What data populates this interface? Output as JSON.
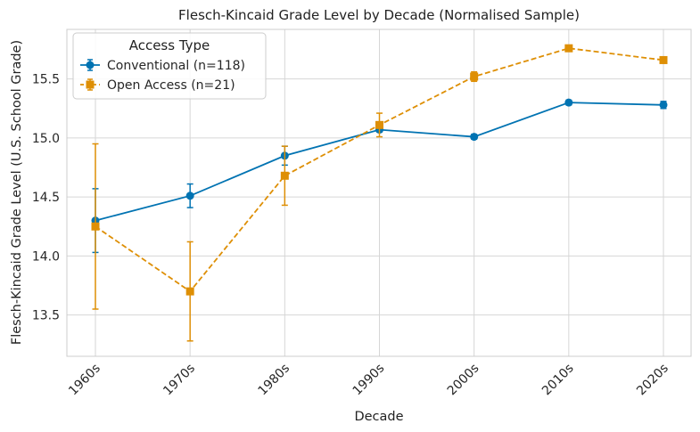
{
  "chart_data": {
    "type": "line",
    "title": "Flesch-Kincaid Grade Level by Decade (Normalised Sample)",
    "xlabel": "Decade",
    "ylabel": "Flesch-Kincaid Grade Level (U.S. School Grade)",
    "categories": [
      "1960s",
      "1970s",
      "1980s",
      "1990s",
      "2000s",
      "2010s",
      "2020s"
    ],
    "ylim": [
      13.15,
      15.92
    ],
    "yticks": [
      "13.5",
      "14.0",
      "14.5",
      "15.0",
      "15.5"
    ],
    "grid": true,
    "legend": {
      "title": "Access Type",
      "placement": "top-left"
    },
    "series": [
      {
        "name": "Conventional (n=118)",
        "color": "#0173b2",
        "marker": "circle",
        "linestyle": "solid",
        "values": [
          14.3,
          14.51,
          14.85,
          15.07,
          15.01,
          15.3,
          15.28
        ],
        "error": [
          0.27,
          0.1,
          0.08,
          0.02,
          0.02,
          0.02,
          0.03
        ]
      },
      {
        "name": "Open Access (n=21)",
        "color": "#de8f05",
        "marker": "square",
        "linestyle": "dashed",
        "values": [
          14.25,
          13.7,
          14.68,
          15.11,
          15.52,
          15.76,
          15.66
        ],
        "error": [
          0.7,
          0.42,
          0.25,
          0.1,
          0.04,
          0.01,
          0.01
        ]
      }
    ]
  }
}
